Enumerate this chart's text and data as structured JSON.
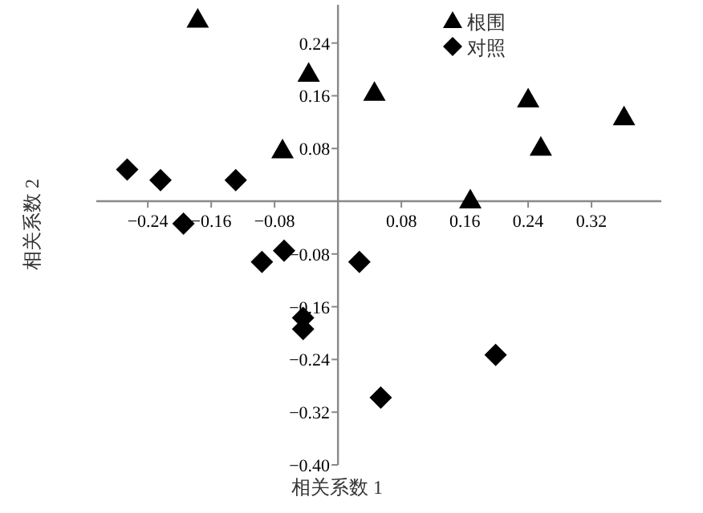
{
  "chart_data": {
    "type": "scatter",
    "xlabel": "相关系数 1",
    "ylabel": "相关系数 2",
    "legend": "top right",
    "grid": false,
    "xlim": [
      -0.305,
      0.408
    ],
    "ylim": [
      -0.4,
      0.298
    ],
    "xticks": [
      {
        "value": -0.24,
        "label": "−0.24"
      },
      {
        "value": -0.16,
        "label": "−0.16"
      },
      {
        "value": -0.08,
        "label": "−0.08"
      },
      0.08,
      0.16,
      0.24,
      0.32
    ],
    "yticks": [
      {
        "value": -0.4,
        "label": "−0.40"
      },
      {
        "value": -0.32,
        "label": "−0.32"
      },
      {
        "value": -0.24,
        "label": "−0.24"
      },
      {
        "value": -0.16,
        "label": "−0.16"
      },
      {
        "value": -0.08,
        "label": "−0.08"
      },
      0.08,
      0.16,
      0.24
    ],
    "series": [
      {
        "name": "根围",
        "color": "#000000",
        "marker": "triangle",
        "x": [
          -0.177,
          -0.037,
          0.046,
          -0.07,
          0.167,
          0.24,
          0.256,
          0.361
        ],
        "values": [
          0.276,
          0.194,
          0.165,
          0.078,
          0.002,
          0.155,
          0.082,
          0.128
        ]
      },
      {
        "name": "对照",
        "color": "#000000",
        "marker": "diamond",
        "x": [
          -0.266,
          -0.224,
          -0.129,
          -0.195,
          -0.096,
          -0.068,
          0.027,
          -0.044,
          -0.044,
          0.199,
          0.054
        ],
        "values": [
          0.048,
          0.032,
          0.032,
          -0.034,
          -0.092,
          -0.075,
          -0.092,
          -0.177,
          -0.194,
          -0.233,
          -0.298
        ]
      }
    ]
  }
}
